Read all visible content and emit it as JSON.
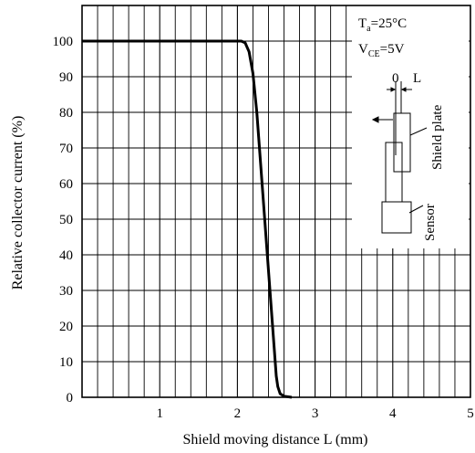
{
  "chart_data": {
    "type": "line",
    "xlabel": "Shield moving distance L (mm)",
    "ylabel": "Relative collector current (%)",
    "xlim": [
      0,
      5
    ],
    "ylim": [
      0,
      110
    ],
    "x_ticks": [
      1,
      2,
      3,
      4,
      5
    ],
    "y_ticks": [
      0,
      10,
      20,
      30,
      40,
      50,
      60,
      70,
      80,
      90,
      100
    ],
    "grid": true,
    "series": [
      {
        "x": [
          0,
          2.0,
          2.05,
          2.1,
          2.15,
          2.2,
          2.25,
          2.5,
          2.52,
          2.55,
          2.6,
          2.7
        ],
        "y": [
          100,
          100,
          100,
          99.5,
          97,
          91,
          80,
          6,
          3,
          1,
          0.3,
          0
        ]
      }
    ],
    "annotations": {
      "temp_main": "T",
      "temp_sub": "a",
      "temp_value": "=25°C",
      "volt_main": "V",
      "volt_sub": "CE",
      "volt_value": "=5V",
      "zero": "0",
      "l": "L",
      "shield_plate": "Shield plate",
      "sensor": "Sensor"
    }
  }
}
